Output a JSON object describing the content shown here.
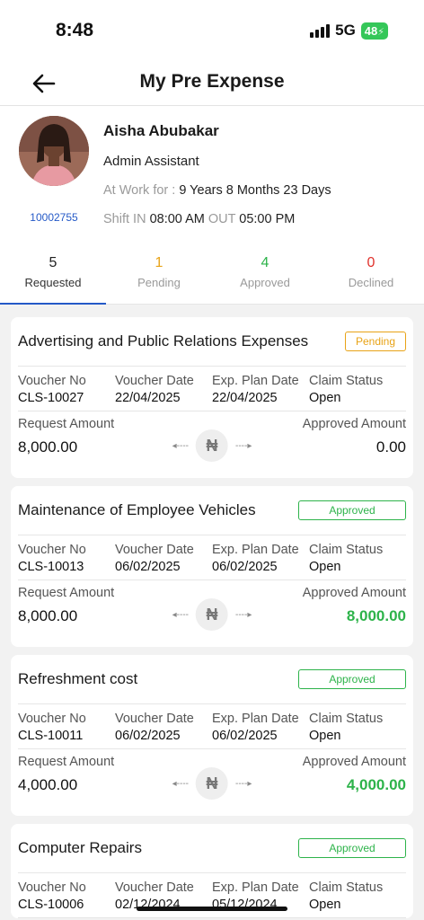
{
  "status": {
    "time": "8:48",
    "network": "5G",
    "battery": "48"
  },
  "header": {
    "title": "My Pre Expense"
  },
  "profile": {
    "name": "Aisha Abubakar",
    "role": "Admin Assistant",
    "work_label": "At Work for : ",
    "work_value": "9 Years 8 Months 23 Days",
    "employee_id": "10002755",
    "shift_in_label": "Shift IN",
    "shift_in": "08:00 AM",
    "shift_out_label": "OUT",
    "shift_out": "05:00 PM"
  },
  "tabs": [
    {
      "count": "5",
      "label": "Requested",
      "color": "#222222"
    },
    {
      "count": "1",
      "label": "Pending",
      "color": "#e8a317"
    },
    {
      "count": "4",
      "label": "Approved",
      "color": "#2db34a"
    },
    {
      "count": "0",
      "label": "Declined",
      "color": "#e0312b"
    }
  ],
  "labels": {
    "voucher_no": "Voucher No",
    "voucher_date": "Voucher Date",
    "exp_plan_date": "Exp. Plan Date",
    "claim_status": "Claim Status",
    "request_amount": "Request Amount",
    "approved_amount": "Approved Amount",
    "currency_symbol": "₦",
    "arrow_left": "◂----",
    "arrow_right": "----▸"
  },
  "cards": [
    {
      "title": "Advertising and Public Relations Expenses",
      "status": "Pending",
      "voucher_no": "CLS-10027",
      "voucher_date": "22/04/2025",
      "exp_plan_date": "22/04/2025",
      "claim_status": "Open",
      "request_amount": "8,000.00",
      "approved_amount": "0.00"
    },
    {
      "title": "Maintenance of Employee Vehicles",
      "status": "Approved",
      "voucher_no": "CLS-10013",
      "voucher_date": "06/02/2025",
      "exp_plan_date": "06/02/2025",
      "claim_status": "Open",
      "request_amount": "8,000.00",
      "approved_amount": "8,000.00"
    },
    {
      "title": "Refreshment cost",
      "status": "Approved",
      "voucher_no": "CLS-10011",
      "voucher_date": "06/02/2025",
      "exp_plan_date": "06/02/2025",
      "claim_status": "Open",
      "request_amount": "4,000.00",
      "approved_amount": "4,000.00"
    },
    {
      "title": "Computer Repairs",
      "status": "Approved",
      "voucher_no": "CLS-10006",
      "voucher_date": "02/12/2024",
      "exp_plan_date": "05/12/2024",
      "claim_status": "Open",
      "request_amount": "",
      "approved_amount": ""
    }
  ]
}
